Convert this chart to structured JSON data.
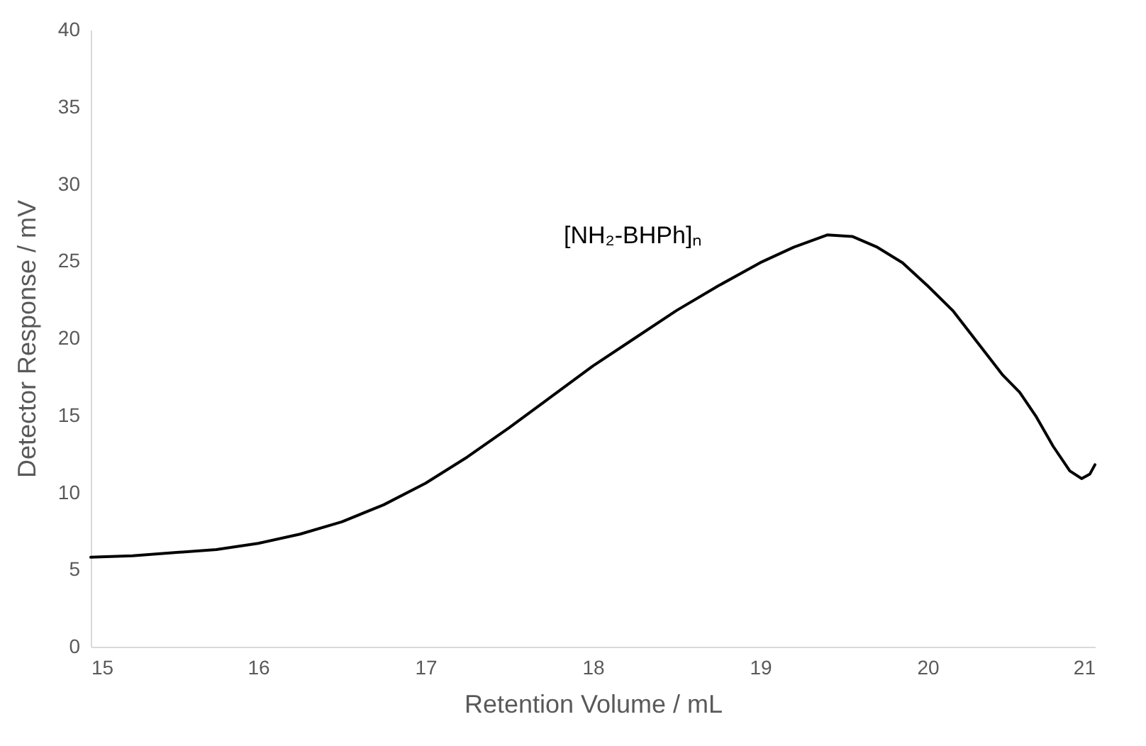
{
  "chart_data": {
    "type": "line",
    "xlabel": "Retention Volume / mL",
    "ylabel": "Detector Response / mV",
    "xlim": [
      15,
      21
    ],
    "xticks": [
      15,
      16,
      17,
      18,
      19,
      20,
      21
    ],
    "ylim": [
      0,
      40
    ],
    "yticks": [
      0,
      5,
      10,
      15,
      20,
      25,
      30,
      35,
      40
    ],
    "grid": false,
    "line_style": "solid",
    "marker": "none",
    "annotations": [
      "[NH₂-BHPh]ₙ"
    ],
    "x": [
      15.0,
      15.25,
      15.5,
      15.75,
      16.0,
      16.25,
      16.5,
      16.75,
      17.0,
      17.25,
      17.5,
      17.75,
      18.0,
      18.25,
      18.5,
      18.75,
      19.0,
      19.2,
      19.4,
      19.55,
      19.7,
      19.85,
      20.0,
      20.15,
      20.3,
      20.45,
      20.55,
      20.65,
      20.75,
      20.85,
      20.92,
      20.97,
      21.0
    ],
    "series": [
      {
        "color": "#000000",
        "values": [
          5.8,
          5.9,
          6.1,
          6.3,
          6.7,
          7.3,
          8.1,
          9.2,
          10.6,
          12.3,
          14.2,
          16.2,
          18.2,
          20.0,
          21.8,
          23.4,
          24.9,
          25.9,
          26.7,
          26.6,
          25.9,
          24.9,
          23.4,
          21.8,
          19.7,
          17.6,
          16.5,
          14.9,
          13.0,
          11.4,
          10.9,
          11.2,
          11.8
        ]
      }
    ]
  }
}
